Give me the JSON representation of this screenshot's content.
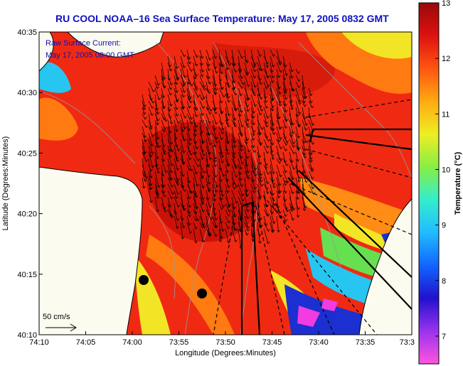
{
  "title": "RU COOL  NOAA–16  Sea Surface Temperature:  May 17, 2005 0832 GMT",
  "annotations": {
    "current_line1": "Raw Surface Current:",
    "current_line2": "May 17, 2005 08:00 GMT",
    "scale_label": "50 cm/s"
  },
  "axes": {
    "xlabel": "Longitude (Degrees:Minutes)",
    "ylabel": "Latitude (Degrees:Minutes)",
    "x_ticks": [
      "74:10",
      "74:05",
      "74:00",
      "73:55",
      "73:50",
      "73:45",
      "73:40",
      "73:35",
      "73:3"
    ],
    "y_ticks": [
      "40:35",
      "40:30",
      "40:25",
      "40:20",
      "40:15",
      "40:10"
    ]
  },
  "colorbar": {
    "label": "Temperature (°C)",
    "ticks": [
      "13",
      "12",
      "11",
      "10",
      "9",
      "8",
      "7"
    ],
    "range": [
      6.5,
      13
    ],
    "colors": [
      "#ff55dd",
      "#9933ee",
      "#2211cc",
      "#1166ff",
      "#22bbff",
      "#33eecc",
      "#88ee44",
      "#eeee22",
      "#ffaa11",
      "#ff5511",
      "#dd1111",
      "#990909"
    ]
  },
  "map_colors": {
    "land": "#fbfbf0",
    "coastline": "#000000",
    "contour": "#9a9a9a",
    "warm": "#f02a12",
    "hot": "#cc1208",
    "orange": "#ff7a10",
    "yellow": "#f2e526",
    "green": "#66e050",
    "cyan": "#27c6f0",
    "blue": "#1c2fd0",
    "magenta": "#f03ce0"
  }
}
